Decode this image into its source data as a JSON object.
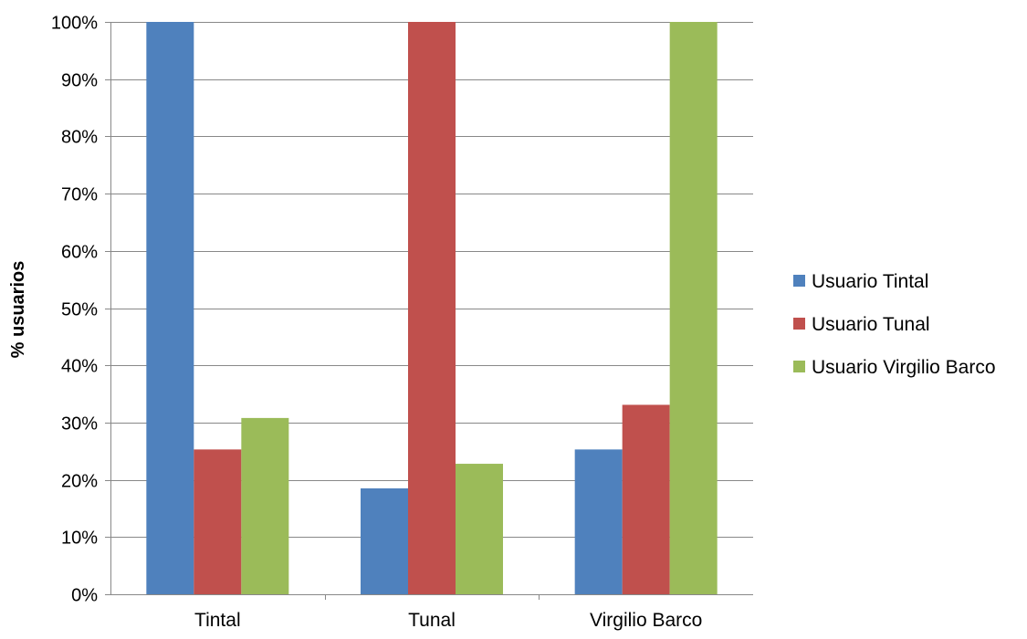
{
  "chart_data": {
    "type": "bar",
    "title": "",
    "xlabel": "",
    "ylabel": "% usuarios",
    "ylim": [
      0,
      100
    ],
    "y_ticks": [
      "0%",
      "10%",
      "20%",
      "30%",
      "40%",
      "50%",
      "60%",
      "70%",
      "80%",
      "90%",
      "100%"
    ],
    "y_tick_values": [
      0,
      10,
      20,
      30,
      40,
      50,
      60,
      70,
      80,
      90,
      100
    ],
    "grid": true,
    "legend_position": "right",
    "categories": [
      "Tintal",
      "Tunal",
      "Virgilio Barco"
    ],
    "series": [
      {
        "name": "Usuario Tintal",
        "color": "#4F81BD",
        "values": [
          100,
          18.5,
          25.3
        ]
      },
      {
        "name": "Usuario Tunal",
        "color": "#C0504D",
        "values": [
          25.3,
          100,
          33.1
        ]
      },
      {
        "name": "Usuario Virgilio Barco",
        "color": "#9BBB59",
        "values": [
          30.8,
          22.8,
          100
        ]
      }
    ]
  }
}
